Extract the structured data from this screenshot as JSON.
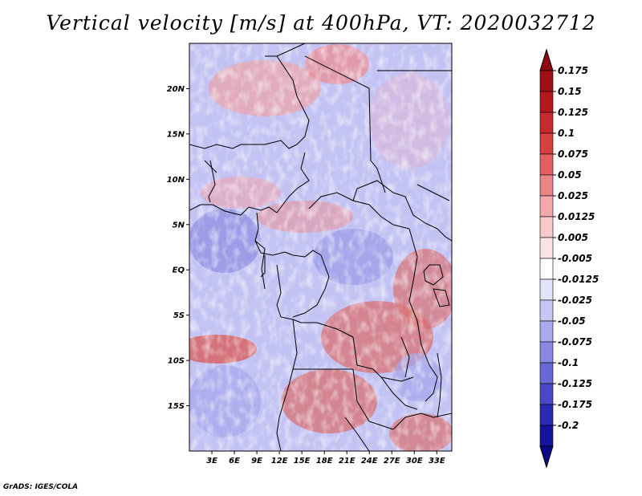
{
  "title": "Vertical velocity [m/s] at 400hPa, VT: 2020032712",
  "credit": "GrADS: IGES/COLA",
  "map": {
    "lon_range": [
      0,
      35
    ],
    "lat_range": [
      -20,
      25
    ],
    "lat_ticks": [
      {
        "value": 20,
        "label": "20N"
      },
      {
        "value": 15,
        "label": "15N"
      },
      {
        "value": 10,
        "label": "10N"
      },
      {
        "value": 5,
        "label": "5N"
      },
      {
        "value": 0,
        "label": "EQ"
      },
      {
        "value": -5,
        "label": "5S"
      },
      {
        "value": -10,
        "label": "10S"
      },
      {
        "value": -15,
        "label": "15S"
      }
    ],
    "lon_ticks": [
      {
        "value": 3,
        "label": "3E"
      },
      {
        "value": 6,
        "label": "6E"
      },
      {
        "value": 9,
        "label": "9E"
      },
      {
        "value": 12,
        "label": "12E"
      },
      {
        "value": 15,
        "label": "15E"
      },
      {
        "value": 18,
        "label": "18E"
      },
      {
        "value": 21,
        "label": "21E"
      },
      {
        "value": 24,
        "label": "24E"
      },
      {
        "value": 27,
        "label": "27E"
      },
      {
        "value": 30,
        "label": "30E"
      },
      {
        "value": 33,
        "label": "33E"
      }
    ]
  },
  "colorbar": {
    "levels": [
      {
        "label": "0.175",
        "color": "#a00f14"
      },
      {
        "label": "0.15",
        "color": "#b3181c"
      },
      {
        "label": "0.125",
        "color": "#c72a2c"
      },
      {
        "label": "0.1",
        "color": "#d84040"
      },
      {
        "label": "0.075",
        "color": "#e36060"
      },
      {
        "label": "0.05",
        "color": "#ec8585"
      },
      {
        "label": "0.025",
        "color": "#f3a9a9"
      },
      {
        "label": "0.0125",
        "color": "#f8c9c9"
      },
      {
        "label": "0.005",
        "color": "#fbe4e4"
      },
      {
        "label": "-0.005",
        "color": "#ffffff"
      },
      {
        "label": "-0.0125",
        "color": "#e3e3fb"
      },
      {
        "label": "-0.025",
        "color": "#c7c7f5"
      },
      {
        "label": "-0.05",
        "color": "#a9a9ee"
      },
      {
        "label": "-0.075",
        "color": "#8888e4"
      },
      {
        "label": "-0.1",
        "color": "#6868d8"
      },
      {
        "label": "-0.125",
        "color": "#4848c8"
      },
      {
        "label": "-0.175",
        "color": "#2a2ab4"
      },
      {
        "label": "-0.2",
        "color": "#14149e"
      }
    ],
    "top_color": "#8c0a0f",
    "bottom_color": "#0a0a8a"
  }
}
